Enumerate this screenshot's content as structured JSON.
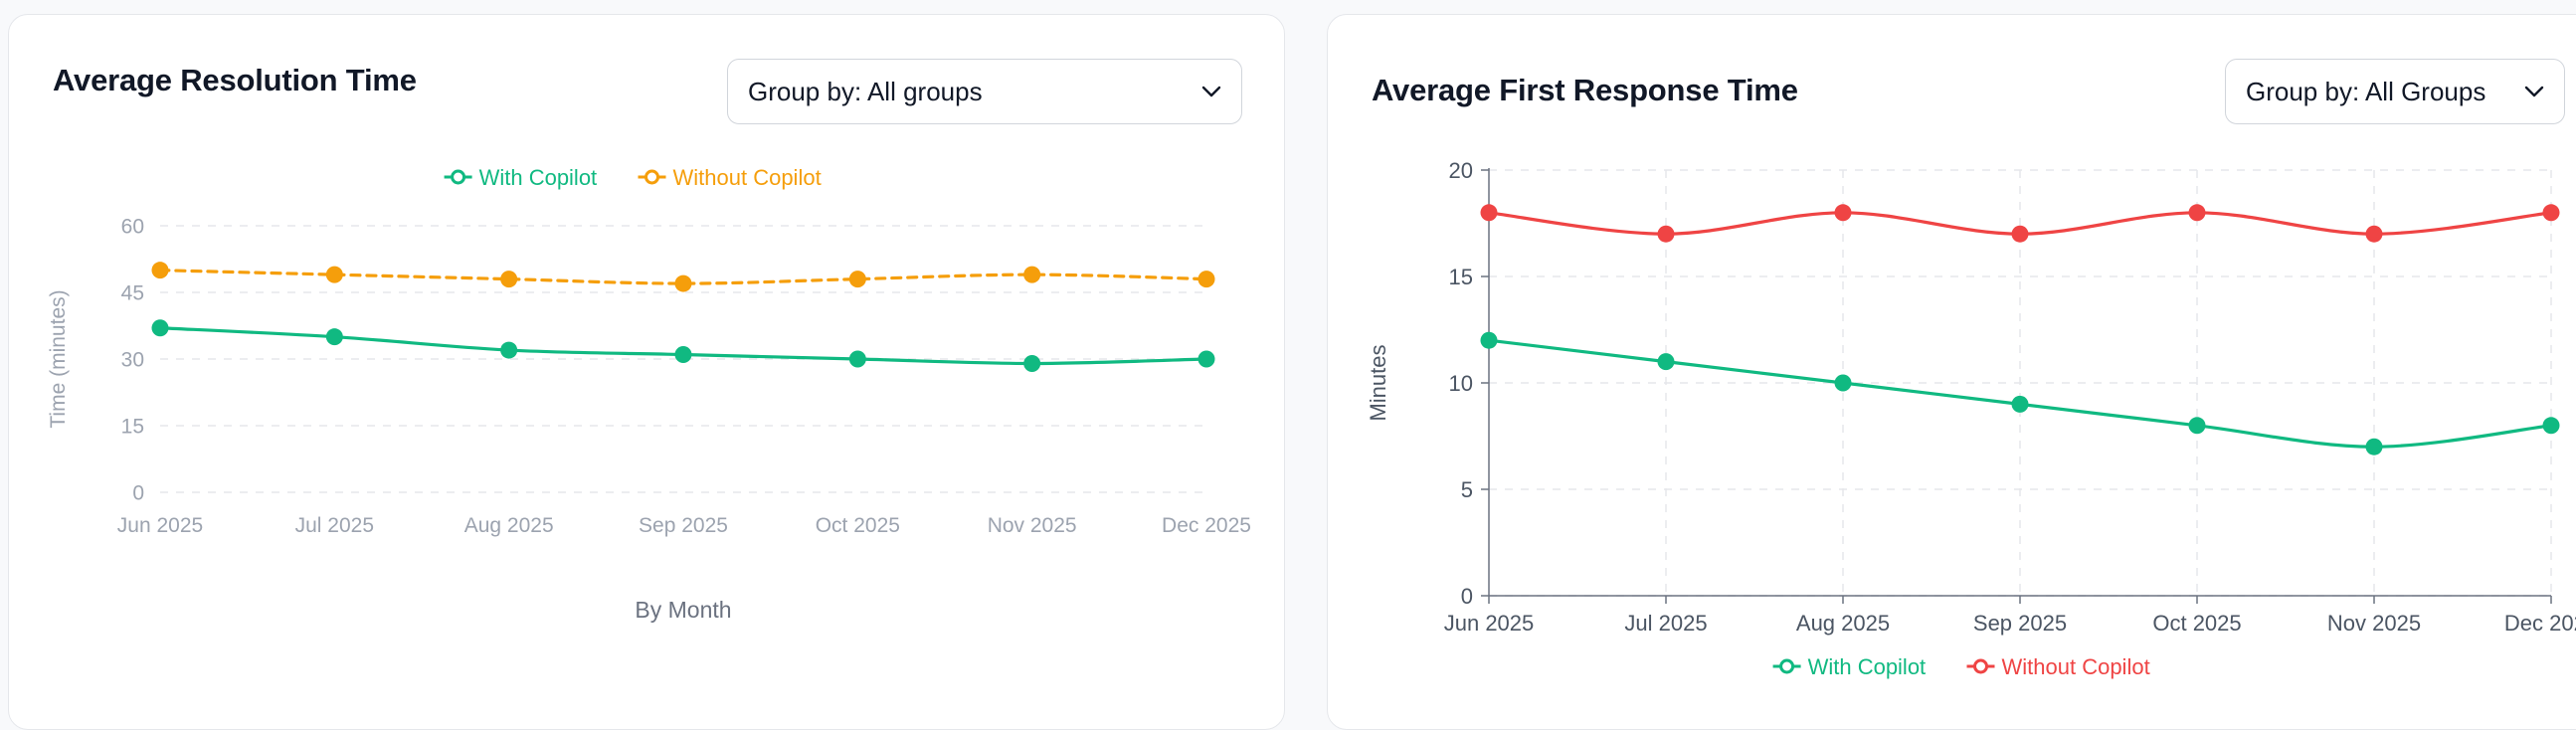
{
  "panels": [
    {
      "title": "Average Resolution Time",
      "group_select": "Group by: All groups"
    },
    {
      "title": "Average First Response Time",
      "group_select": "Group by: All Groups"
    }
  ],
  "chart_data": [
    {
      "type": "line",
      "categories": [
        "Jun 2025",
        "Jul 2025",
        "Aug 2025",
        "Sep 2025",
        "Oct 2025",
        "Nov 2025",
        "Dec 2025"
      ],
      "series": [
        {
          "name": "With Copilot",
          "color": "#10b981",
          "dashed": false,
          "values": [
            37,
            35,
            32,
            31,
            30,
            29,
            30
          ]
        },
        {
          "name": "Without Copilot",
          "color": "#f59e0b",
          "dashed": true,
          "values": [
            50,
            49,
            48,
            47,
            48,
            49,
            48
          ]
        }
      ],
      "xlabel": "By Month",
      "ylabel": "Time (minutes)",
      "yticks": [
        0,
        15,
        30,
        45,
        60
      ],
      "ylim": [
        0,
        60
      ],
      "legend": "top",
      "grid": true
    },
    {
      "type": "line",
      "categories": [
        "Jun 2025",
        "Jul 2025",
        "Aug 2025",
        "Sep 2025",
        "Oct 2025",
        "Nov 2025",
        "Dec 2025"
      ],
      "series": [
        {
          "name": "With Copilot",
          "color": "#10b981",
          "dashed": false,
          "values": [
            12,
            11,
            10,
            9,
            8,
            7,
            8
          ]
        },
        {
          "name": "Without Copilot",
          "color": "#ef4444",
          "dashed": false,
          "values": [
            18,
            17,
            18,
            17,
            18,
            17,
            18
          ]
        }
      ],
      "xlabel": "",
      "ylabel": "Minutes",
      "yticks": [
        0,
        5,
        10,
        15,
        20
      ],
      "ylim": [
        0,
        20
      ],
      "legend": "bottom",
      "grid": true
    }
  ]
}
